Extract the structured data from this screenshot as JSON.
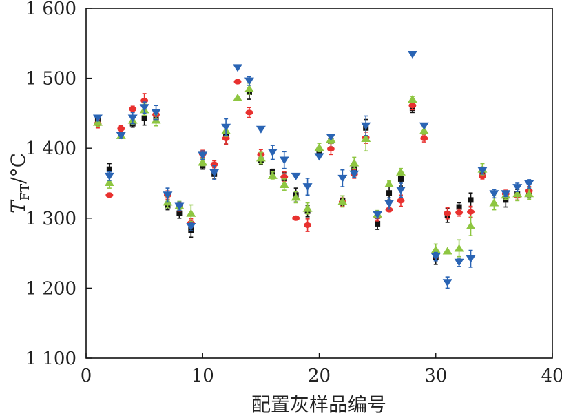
{
  "chart_data": {
    "type": "scatter",
    "title": "",
    "xlabel": "配置灰样品编号",
    "ylabel": "T_FT/°C",
    "ylabel_main": "T",
    "ylabel_sub": "FT",
    "ylabel_unit": "/°C",
    "xlim": [
      0,
      40
    ],
    "ylim": [
      1100,
      1600
    ],
    "x_ticks": [
      0,
      10,
      20,
      30,
      40
    ],
    "x_tick_labels": [
      "0",
      "10",
      "20",
      "30",
      "40"
    ],
    "y_ticks": [
      1100,
      1200,
      1300,
      1400,
      1500,
      1600
    ],
    "y_tick_labels": [
      "1 100",
      "1 200",
      "1 300",
      "1 400",
      "1 500",
      "1 600"
    ],
    "grid": false,
    "series": [
      {
        "marker": "square",
        "color": "#111111",
        "points": [
          [
            1,
            1440,
            6
          ],
          [
            2,
            1370,
            8
          ],
          [
            3,
            1418,
            4
          ],
          [
            4,
            1435,
            5
          ],
          [
            5,
            1443,
            10
          ],
          [
            6,
            1443,
            7
          ],
          [
            7,
            1318,
            6
          ],
          [
            8,
            1307,
            7
          ],
          [
            9,
            1283,
            10
          ],
          [
            10,
            1375,
            5
          ],
          [
            11,
            1363,
            6
          ],
          [
            12,
            1418,
            12
          ],
          [
            14,
            1480,
            10
          ],
          [
            15,
            1383,
            6
          ],
          [
            16,
            1366,
            4
          ],
          [
            17,
            1357,
            8
          ],
          [
            18,
            1333,
            10
          ],
          [
            19,
            1310,
            8
          ],
          [
            20,
            1396,
            6
          ],
          [
            21,
            1410,
            8
          ],
          [
            22,
            1325,
            7
          ],
          [
            23,
            1370,
            10
          ],
          [
            24,
            1429,
            12
          ],
          [
            25,
            1292,
            8
          ],
          [
            26,
            1336,
            10
          ],
          [
            27,
            1356,
            10
          ],
          [
            28,
            1457,
            6
          ],
          [
            30,
            1244,
            10
          ],
          [
            31,
            1304,
            10
          ],
          [
            32,
            1316,
            6
          ],
          [
            33,
            1326,
            10
          ],
          [
            34,
            1363,
            5
          ],
          [
            36,
            1326,
            10
          ],
          [
            37,
            1335,
            6
          ],
          [
            38,
            1337,
            8
          ]
        ]
      },
      {
        "marker": "circle",
        "color": "#e8312f",
        "points": [
          [
            1,
            1435,
            6
          ],
          [
            2,
            1333,
            0
          ],
          [
            3,
            1428,
            4
          ],
          [
            4,
            1456,
            4
          ],
          [
            5,
            1468,
            10
          ],
          [
            6,
            1448,
            7
          ],
          [
            7,
            1333,
            6
          ],
          [
            8,
            1316,
            6
          ],
          [
            9,
            1293,
            6
          ],
          [
            10,
            1392,
            5
          ],
          [
            11,
            1377,
            5
          ],
          [
            12,
            1414,
            8
          ],
          [
            13,
            1495,
            0
          ],
          [
            14,
            1451,
            7
          ],
          [
            15,
            1391,
            7
          ],
          [
            17,
            1359,
            7
          ],
          [
            18,
            1300,
            0
          ],
          [
            19,
            1290,
            9
          ],
          [
            21,
            1399,
            8
          ],
          [
            22,
            1323,
            6
          ],
          [
            23,
            1363,
            6
          ],
          [
            24,
            1415,
            8
          ],
          [
            25,
            1302,
            6
          ],
          [
            26,
            1312,
            0
          ],
          [
            27,
            1325,
            8
          ],
          [
            28,
            1461,
            6
          ],
          [
            29,
            1414,
            5
          ],
          [
            30,
            1249,
            6
          ],
          [
            31,
            1307,
            8
          ],
          [
            32,
            1308,
            5
          ],
          [
            33,
            1309,
            8
          ],
          [
            34,
            1360,
            4
          ],
          [
            36,
            1335,
            5
          ],
          [
            37,
            1332,
            6
          ],
          [
            38,
            1339,
            6
          ]
        ]
      },
      {
        "marker": "triangle-up",
        "color": "#8ec641",
        "points": [
          [
            1,
            1437,
            6
          ],
          [
            2,
            1351,
            8
          ],
          [
            3,
            1418,
            4
          ],
          [
            4,
            1440,
            6
          ],
          [
            5,
            1455,
            8
          ],
          [
            6,
            1440,
            8
          ],
          [
            7,
            1323,
            8
          ],
          [
            8,
            1318,
            6
          ],
          [
            9,
            1307,
            12
          ],
          [
            10,
            1380,
            5
          ],
          [
            12,
            1425,
            8
          ],
          [
            13,
            1472,
            0
          ],
          [
            14,
            1485,
            8
          ],
          [
            15,
            1386,
            8
          ],
          [
            16,
            1361,
            5
          ],
          [
            17,
            1348,
            8
          ],
          [
            18,
            1330,
            8
          ],
          [
            19,
            1314,
            8
          ],
          [
            20,
            1401,
            6
          ],
          [
            21,
            1413,
            6
          ],
          [
            22,
            1324,
            8
          ],
          [
            23,
            1379,
            8
          ],
          [
            24,
            1414,
            18
          ],
          [
            25,
            1306,
            5
          ],
          [
            26,
            1349,
            4
          ],
          [
            27,
            1366,
            5
          ],
          [
            28,
            1470,
            4
          ],
          [
            29,
            1425,
            5
          ],
          [
            30,
            1255,
            8
          ],
          [
            31,
            1253,
            0
          ],
          [
            32,
            1257,
            12
          ],
          [
            33,
            1289,
            14
          ],
          [
            34,
            1370,
            8
          ],
          [
            35,
            1322,
            10
          ],
          [
            36,
            1333,
            6
          ],
          [
            37,
            1335,
            10
          ],
          [
            38,
            1335,
            8
          ]
        ]
      },
      {
        "marker": "triangle-down",
        "color": "#2a64b4",
        "points": [
          [
            1,
            1443,
            4
          ],
          [
            2,
            1360,
            6
          ],
          [
            3,
            1418,
            4
          ],
          [
            4,
            1443,
            8
          ],
          [
            5,
            1458,
            8
          ],
          [
            6,
            1451,
            10
          ],
          [
            7,
            1333,
            10
          ],
          [
            8,
            1317,
            6
          ],
          [
            9,
            1288,
            6
          ],
          [
            10,
            1390,
            6
          ],
          [
            11,
            1365,
            10
          ],
          [
            12,
            1430,
            12
          ],
          [
            13,
            1515,
            0
          ],
          [
            14,
            1496,
            6
          ],
          [
            15,
            1427,
            0
          ],
          [
            16,
            1394,
            10
          ],
          [
            17,
            1383,
            12
          ],
          [
            18,
            1360,
            0
          ],
          [
            19,
            1345,
            12
          ],
          [
            20,
            1388,
            0
          ],
          [
            21,
            1416,
            0
          ],
          [
            22,
            1357,
            12
          ],
          [
            23,
            1363,
            5
          ],
          [
            24,
            1432,
            14
          ],
          [
            25,
            1305,
            5
          ],
          [
            26,
            1321,
            8
          ],
          [
            27,
            1340,
            10
          ],
          [
            28,
            1534,
            0
          ],
          [
            29,
            1432,
            0
          ],
          [
            30,
            1245,
            6
          ],
          [
            31,
            1208,
            8
          ],
          [
            32,
            1237,
            6
          ],
          [
            33,
            1242,
            12
          ],
          [
            34,
            1368,
            5
          ],
          [
            35,
            1335,
            6
          ],
          [
            36,
            1335,
            4
          ],
          [
            37,
            1344,
            6
          ],
          [
            38,
            1349,
            6
          ]
        ]
      }
    ]
  }
}
